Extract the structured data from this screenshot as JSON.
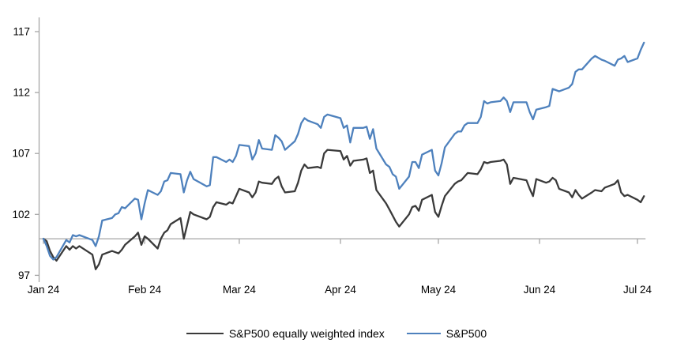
{
  "chart_data": {
    "type": "line",
    "title": "",
    "grid": "none",
    "legend_position": "bottom-center",
    "y_axis": {
      "min": 97,
      "max": 117,
      "ticks": [
        97,
        102,
        107,
        112,
        117
      ],
      "tick_labels": [
        "97",
        "102",
        "107",
        "112",
        "117"
      ],
      "baseline_value": 100
    },
    "x_ticks": [
      {
        "label": "Jan 24",
        "day": 1
      },
      {
        "label": "Feb 24",
        "day": 32
      },
      {
        "label": "Mar 24",
        "day": 61
      },
      {
        "label": "Apr 24",
        "day": 92
      },
      {
        "label": "May 24",
        "day": 122
      },
      {
        "label": "Jun 24",
        "day": 153
      },
      {
        "label": "Jul 24",
        "day": 183
      }
    ],
    "x": {
      "unit": "day_of_year_2024",
      "values": [
        1,
        2,
        3,
        4,
        5,
        8,
        9,
        10,
        11,
        12,
        16,
        17,
        18,
        19,
        22,
        23,
        24,
        25,
        26,
        29,
        30,
        31,
        32,
        33,
        36,
        37,
        38,
        39,
        40,
        43,
        44,
        45,
        46,
        47,
        51,
        52,
        53,
        54,
        57,
        58,
        59,
        60,
        61,
        64,
        65,
        66,
        67,
        68,
        71,
        72,
        73,
        74,
        75,
        78,
        79,
        80,
        81,
        82,
        85,
        86,
        87,
        88,
        92,
        93,
        94,
        95,
        96,
        99,
        100,
        101,
        102,
        103,
        106,
        107,
        108,
        109,
        110,
        113,
        114,
        115,
        116,
        117,
        120,
        121,
        122,
        123,
        124,
        127,
        128,
        129,
        130,
        131,
        134,
        135,
        136,
        137,
        138,
        141,
        142,
        143,
        144,
        145,
        149,
        150,
        151,
        152,
        155,
        156,
        157,
        158,
        159,
        162,
        163,
        164,
        165,
        166,
        169,
        170,
        172,
        173,
        176,
        177,
        178,
        179,
        180,
        183,
        184,
        185
      ]
    },
    "series": [
      {
        "name": "S&P500 equally weighted index",
        "color": "#3a3a3a",
        "values": [
          100.0,
          99.8,
          99.0,
          98.5,
          98.2,
          99.4,
          99.1,
          99.4,
          99.2,
          99.4,
          98.7,
          97.5,
          97.9,
          98.7,
          99.0,
          98.9,
          98.8,
          99.1,
          99.5,
          100.2,
          100.5,
          99.5,
          100.2,
          100.0,
          99.2,
          100.0,
          100.5,
          100.7,
          101.2,
          101.7,
          100.0,
          101.1,
          102.2,
          102.0,
          101.6,
          101.8,
          102.6,
          103.0,
          102.8,
          103.0,
          102.9,
          103.5,
          104.1,
          103.8,
          103.4,
          103.8,
          104.7,
          104.6,
          104.5,
          104.9,
          105.1,
          104.3,
          103.8,
          103.9,
          104.6,
          105.6,
          106.1,
          105.8,
          105.9,
          105.8,
          107.0,
          107.3,
          107.2,
          106.5,
          106.8,
          106.0,
          106.4,
          106.5,
          106.6,
          105.4,
          105.6,
          104.0,
          102.9,
          102.4,
          101.9,
          101.4,
          101.0,
          102.0,
          102.6,
          102.7,
          102.3,
          103.2,
          103.6,
          102.2,
          101.8,
          102.7,
          103.5,
          104.5,
          104.7,
          104.8,
          105.1,
          105.4,
          105.3,
          105.7,
          106.3,
          106.2,
          106.3,
          106.4,
          106.5,
          106.1,
          104.5,
          105.0,
          104.8,
          104.1,
          103.5,
          104.9,
          104.6,
          104.7,
          105.0,
          104.8,
          104.1,
          103.8,
          103.4,
          104.0,
          103.6,
          103.3,
          103.8,
          104.0,
          103.9,
          104.2,
          104.5,
          104.8,
          103.8,
          103.5,
          103.6,
          103.2,
          103.0,
          103.5
        ]
      },
      {
        "name": "S&P500",
        "color": "#4e81bd",
        "values": [
          100.0,
          99.4,
          98.6,
          98.3,
          98.5,
          99.9,
          99.7,
          100.3,
          100.2,
          100.3,
          99.9,
          99.4,
          100.2,
          101.5,
          101.7,
          102.0,
          102.1,
          102.6,
          102.5,
          103.3,
          103.2,
          101.6,
          102.9,
          104.0,
          103.6,
          103.9,
          104.7,
          104.8,
          105.4,
          105.3,
          103.8,
          104.8,
          105.5,
          104.9,
          104.3,
          104.4,
          106.7,
          106.7,
          106.3,
          106.5,
          106.3,
          106.8,
          107.7,
          107.6,
          106.5,
          107.0,
          108.1,
          107.4,
          107.3,
          108.5,
          108.3,
          108.0,
          107.3,
          108.0,
          108.6,
          109.5,
          109.9,
          109.7,
          109.4,
          109.1,
          110.0,
          110.2,
          109.9,
          109.1,
          109.3,
          107.9,
          109.1,
          109.1,
          109.2,
          108.2,
          109.0,
          107.4,
          106.1,
          105.9,
          105.3,
          105.1,
          104.1,
          105.1,
          106.3,
          106.3,
          105.8,
          106.9,
          107.3,
          105.6,
          105.2,
          106.2,
          107.5,
          108.6,
          108.8,
          108.8,
          109.3,
          109.5,
          109.5,
          110.0,
          111.3,
          111.1,
          111.2,
          111.3,
          111.6,
          111.3,
          110.4,
          111.2,
          111.2,
          110.4,
          109.8,
          110.6,
          110.8,
          110.9,
          112.3,
          112.2,
          112.1,
          112.4,
          112.7,
          113.7,
          113.9,
          113.9,
          114.8,
          115.0,
          114.7,
          114.6,
          114.2,
          114.7,
          114.8,
          115.0,
          114.5,
          114.8,
          115.5,
          116.1
        ]
      }
    ],
    "colors": {
      "axis": "#a6a6a6",
      "tick_text": "#000000"
    }
  }
}
